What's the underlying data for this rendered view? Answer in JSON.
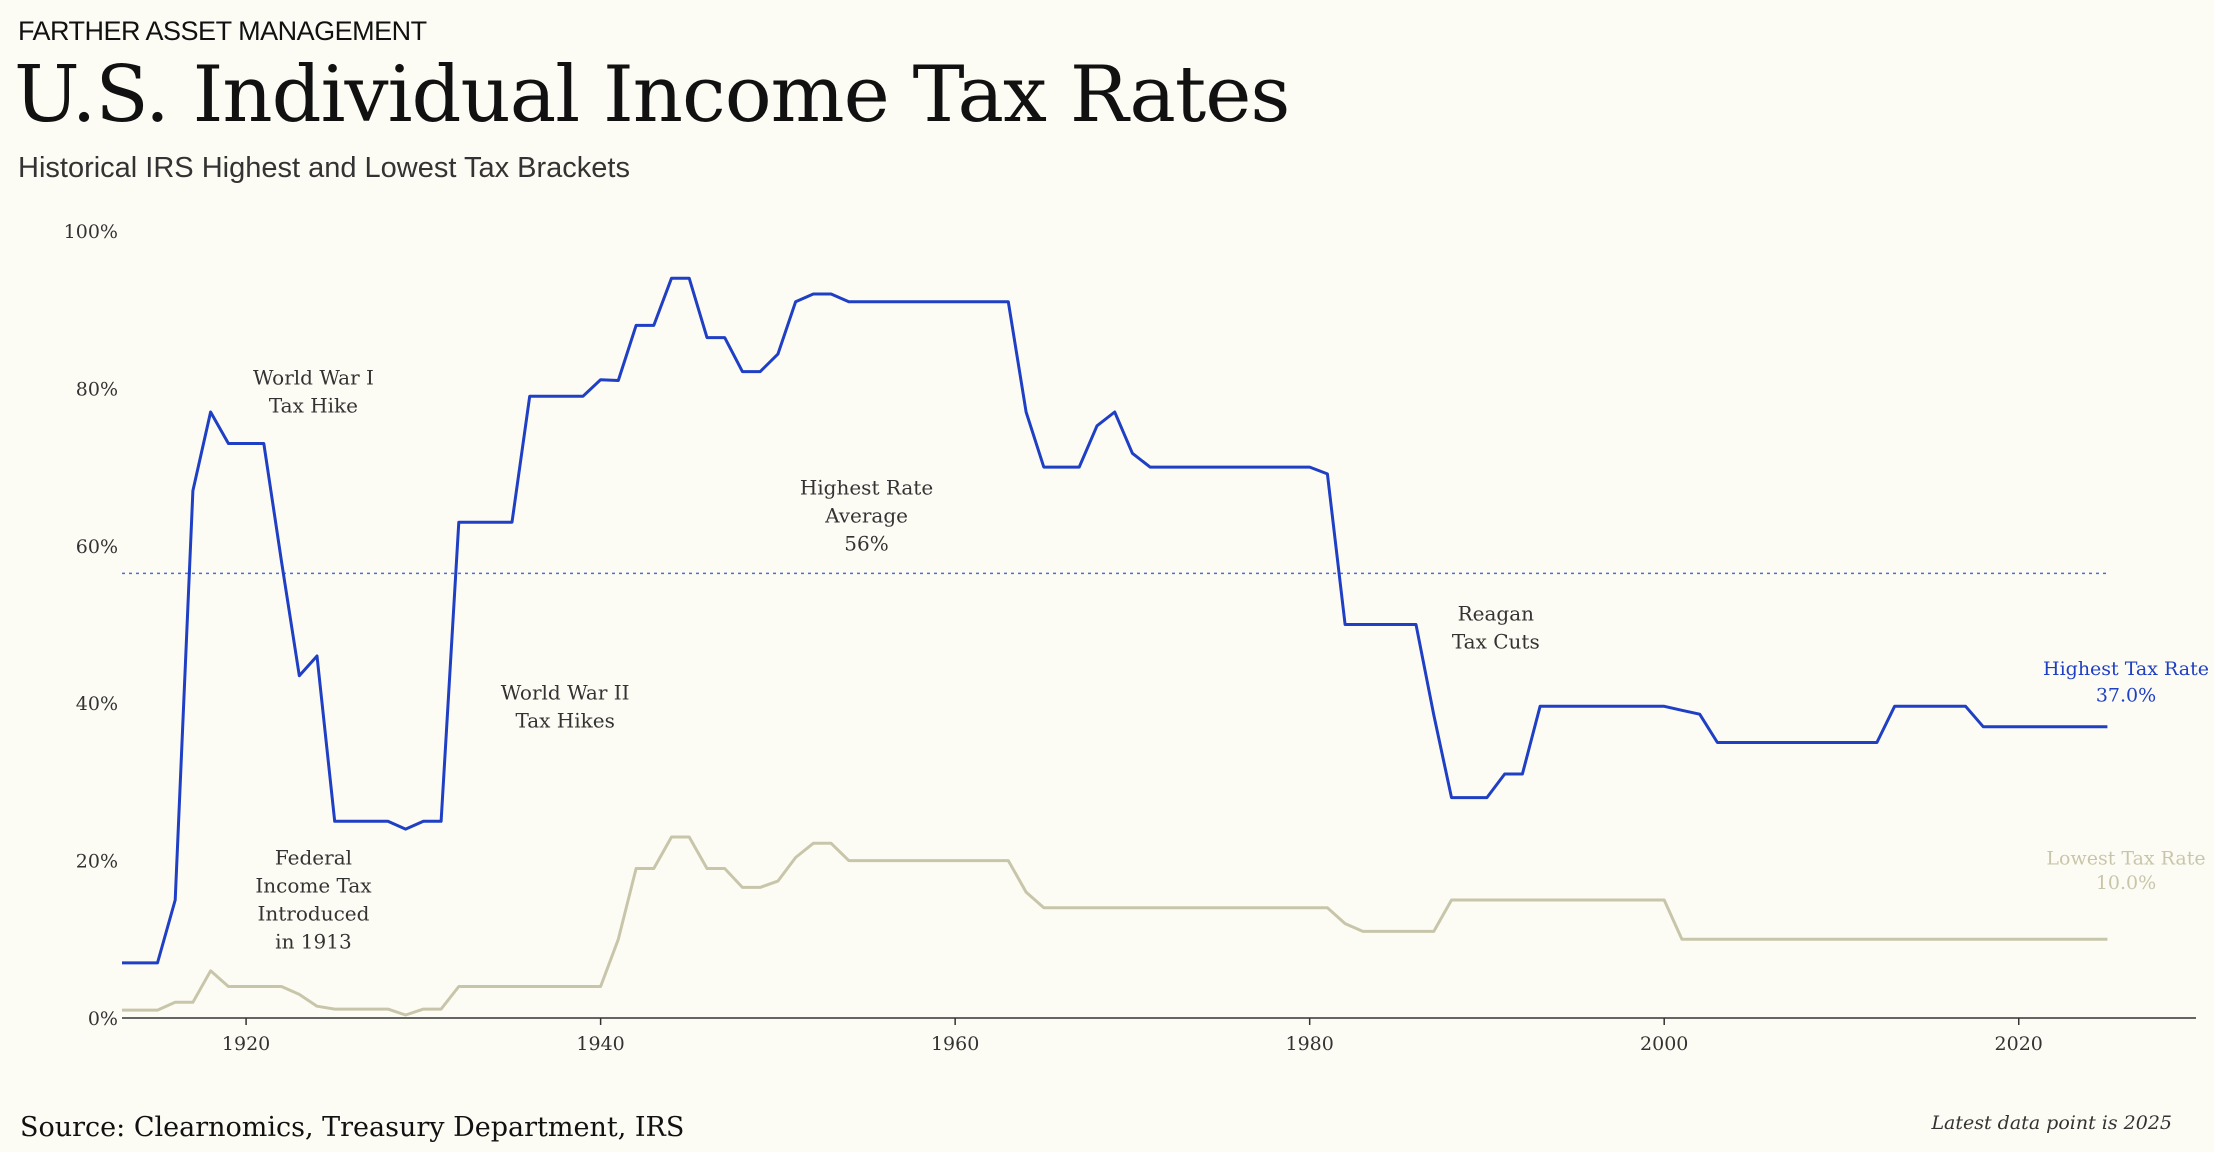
{
  "header": {
    "brand": "FARTHER ASSET MANAGEMENT",
    "title": "U.S. Individual Income Tax Rates",
    "subtitle": "Historical IRS Highest and Lowest Tax Brackets"
  },
  "footer": {
    "source": "Source: Clearnomics, Treasury Department, IRS",
    "latest": "Latest data point is 2025"
  },
  "chart_data": {
    "type": "line",
    "title": "U.S. Individual Income Tax Rates",
    "subtitle": "Historical IRS Highest and Lowest Tax Brackets",
    "xlabel": "",
    "ylabel": "",
    "xlim": [
      1913,
      2030
    ],
    "ylim": [
      0,
      100
    ],
    "x_ticks": [
      1920,
      1940,
      1960,
      1980,
      2000,
      2020
    ],
    "y_ticks": [
      "0%",
      "20%",
      "40%",
      "60%",
      "80%",
      "100%"
    ],
    "grid": false,
    "colors": {
      "highest": "#1f3fc4",
      "lowest": "#c8c6aa",
      "average": "#4a6fd6",
      "axis": "#333333"
    },
    "series": [
      {
        "name": "Highest Tax Rate",
        "end_label": [
          "Highest Tax Rate",
          "37.0%"
        ],
        "points": [
          [
            1913,
            7
          ],
          [
            1915,
            7
          ],
          [
            1916,
            15
          ],
          [
            1917,
            67
          ],
          [
            1918,
            77
          ],
          [
            1919,
            73
          ],
          [
            1921,
            73
          ],
          [
            1922,
            58
          ],
          [
            1923,
            43.5
          ],
          [
            1924,
            46
          ],
          [
            1925,
            25
          ],
          [
            1928,
            25
          ],
          [
            1929,
            24
          ],
          [
            1930,
            25
          ],
          [
            1931,
            25
          ],
          [
            1932,
            63
          ],
          [
            1935,
            63
          ],
          [
            1936,
            79
          ],
          [
            1939,
            79
          ],
          [
            1940,
            81.1
          ],
          [
            1941,
            81
          ],
          [
            1942,
            88
          ],
          [
            1943,
            88
          ],
          [
            1944,
            94
          ],
          [
            1945,
            94
          ],
          [
            1946,
            86.45
          ],
          [
            1947,
            86.45
          ],
          [
            1948,
            82.13
          ],
          [
            1949,
            82.13
          ],
          [
            1950,
            84.36
          ],
          [
            1951,
            91
          ],
          [
            1952,
            92
          ],
          [
            1953,
            92
          ],
          [
            1954,
            91
          ],
          [
            1963,
            91
          ],
          [
            1964,
            77
          ],
          [
            1965,
            70
          ],
          [
            1967,
            70
          ],
          [
            1968,
            75.25
          ],
          [
            1969,
            77
          ],
          [
            1970,
            71.75
          ],
          [
            1971,
            70
          ],
          [
            1980,
            70
          ],
          [
            1981,
            69.13
          ],
          [
            1982,
            50
          ],
          [
            1986,
            50
          ],
          [
            1987,
            38.5
          ],
          [
            1988,
            28
          ],
          [
            1990,
            28
          ],
          [
            1991,
            31
          ],
          [
            1992,
            31
          ],
          [
            1993,
            39.6
          ],
          [
            2000,
            39.6
          ],
          [
            2001,
            39.1
          ],
          [
            2002,
            38.6
          ],
          [
            2003,
            35
          ],
          [
            2012,
            35
          ],
          [
            2013,
            39.6
          ],
          [
            2017,
            39.6
          ],
          [
            2018,
            37
          ],
          [
            2025,
            37
          ]
        ]
      },
      {
        "name": "Lowest Tax Rate",
        "end_label": [
          "Lowest Tax Rate",
          "10.0%"
        ],
        "points": [
          [
            1913,
            1
          ],
          [
            1915,
            1
          ],
          [
            1916,
            2
          ],
          [
            1917,
            2
          ],
          [
            1918,
            6
          ],
          [
            1919,
            4
          ],
          [
            1922,
            4
          ],
          [
            1923,
            3
          ],
          [
            1924,
            1.5
          ],
          [
            1925,
            1.125
          ],
          [
            1928,
            1.125
          ],
          [
            1929,
            0.375
          ],
          [
            1930,
            1.125
          ],
          [
            1931,
            1.125
          ],
          [
            1932,
            4
          ],
          [
            1940,
            4
          ],
          [
            1941,
            10
          ],
          [
            1942,
            19
          ],
          [
            1943,
            19
          ],
          [
            1944,
            23
          ],
          [
            1945,
            23
          ],
          [
            1946,
            19
          ],
          [
            1947,
            19
          ],
          [
            1948,
            16.6
          ],
          [
            1949,
            16.6
          ],
          [
            1950,
            17.4
          ],
          [
            1951,
            20.4
          ],
          [
            1952,
            22.2
          ],
          [
            1953,
            22.2
          ],
          [
            1954,
            20
          ],
          [
            1963,
            20
          ],
          [
            1964,
            16
          ],
          [
            1965,
            14
          ],
          [
            1981,
            14
          ],
          [
            1982,
            12
          ],
          [
            1983,
            11
          ],
          [
            1987,
            11
          ],
          [
            1988,
            15
          ],
          [
            2000,
            15
          ],
          [
            2001,
            10
          ],
          [
            2025,
            10
          ]
        ]
      }
    ],
    "reference_lines": [
      {
        "name": "Highest Rate Average",
        "y": 56.5
      }
    ],
    "annotations": [
      {
        "lines": [
          "World War I",
          "Tax Hike"
        ],
        "x": 1923.8,
        "y": 80.5
      },
      {
        "lines": [
          "Highest Rate",
          "Average",
          "56%"
        ],
        "x": 1955,
        "y": 66.5
      },
      {
        "lines": [
          "World War II",
          "Tax Hikes"
        ],
        "x": 1938,
        "y": 40.5
      },
      {
        "lines": [
          "Reagan",
          "Tax Cuts"
        ],
        "x": 1990.5,
        "y": 50.5
      },
      {
        "lines": [
          "Federal",
          "Income Tax",
          "Introduced",
          "in 1913"
        ],
        "x": 1923.8,
        "y": 19.5
      }
    ]
  }
}
